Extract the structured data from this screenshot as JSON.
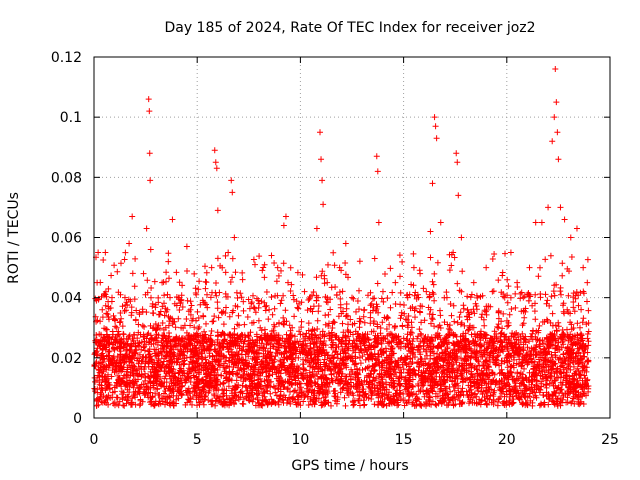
{
  "chart_data": {
    "type": "scatter",
    "title": "Day 185 of 2024, Rate Of TEC Index for receiver joz2",
    "xlabel": "GPS time / hours",
    "ylabel": "ROTI / TECUs",
    "xlim": [
      0,
      25
    ],
    "ylim": [
      0,
      0.12
    ],
    "xticks": [
      0,
      5,
      10,
      15,
      20,
      25
    ],
    "yticks": [
      0,
      0.02,
      0.04,
      0.06,
      0.08,
      0.1,
      0.12
    ],
    "xtick_labels": [
      "0",
      "5",
      "10",
      "15",
      "20",
      "25"
    ],
    "ytick_labels": [
      "0",
      "0.02",
      "0.04",
      "0.06",
      "0.08",
      "0.1",
      "0.12"
    ],
    "grid": true,
    "marker": "+",
    "series_color": "#ff0000",
    "series": [
      {
        "name": "ROTI",
        "x": [
          0.05,
          0.1,
          0.15,
          0.2,
          0.3,
          0.35,
          0.4,
          0.55,
          0.7,
          0.9,
          1.1,
          1.3,
          1.5,
          1.7,
          1.85,
          1.95,
          2.2,
          2.4,
          2.55,
          2.65,
          2.68,
          2.7,
          2.72,
          2.75,
          2.9,
          3.1,
          3.3,
          3.6,
          3.8,
          3.9,
          4.1,
          4.2,
          4.5,
          4.8,
          5.1,
          5.4,
          5.7,
          5.85,
          5.9,
          5.95,
          6.0,
          6.2,
          6.5,
          6.65,
          6.7,
          6.8,
          7.0,
          7.2,
          7.5,
          7.8,
          8.0,
          8.3,
          8.6,
          8.9,
          9.2,
          9.3,
          9.4,
          9.6,
          9.9,
          10.2,
          10.5,
          10.8,
          10.95,
          11.0,
          11.05,
          11.1,
          11.3,
          11.6,
          11.9,
          12.2,
          12.5,
          12.8,
          13.1,
          13.4,
          13.6,
          13.7,
          13.75,
          13.8,
          14.0,
          14.3,
          14.6,
          14.9,
          15.2,
          15.5,
          15.8,
          16.1,
          16.3,
          16.4,
          16.5,
          16.55,
          16.6,
          16.8,
          17.1,
          17.4,
          17.55,
          17.6,
          17.65,
          17.8,
          18.1,
          18.4,
          18.7,
          19.0,
          19.3,
          19.6,
          19.9,
          20.2,
          20.5,
          20.8,
          21.1,
          21.4,
          21.7,
          22.0,
          22.2,
          22.3,
          22.35,
          22.4,
          22.45,
          22.5,
          22.6,
          22.8,
          23.1,
          23.4,
          23.7,
          23.9
        ],
        "y": [
          0.012,
          0.032,
          0.045,
          0.055,
          0.02,
          0.015,
          0.036,
          0.055,
          0.025,
          0.018,
          0.03,
          0.016,
          0.04,
          0.058,
          0.067,
          0.022,
          0.035,
          0.048,
          0.063,
          0.106,
          0.102,
          0.088,
          0.079,
          0.056,
          0.03,
          0.018,
          0.045,
          0.052,
          0.066,
          0.032,
          0.04,
          0.021,
          0.057,
          0.033,
          0.016,
          0.043,
          0.05,
          0.089,
          0.085,
          0.083,
          0.069,
          0.025,
          0.055,
          0.079,
          0.075,
          0.06,
          0.034,
          0.046,
          0.022,
          0.051,
          0.038,
          0.028,
          0.054,
          0.05,
          0.064,
          0.067,
          0.045,
          0.03,
          0.02,
          0.042,
          0.036,
          0.063,
          0.095,
          0.086,
          0.079,
          0.071,
          0.045,
          0.032,
          0.05,
          0.058,
          0.04,
          0.028,
          0.036,
          0.035,
          0.053,
          0.087,
          0.082,
          0.065,
          0.042,
          0.031,
          0.045,
          0.02,
          0.04,
          0.05,
          0.048,
          0.042,
          0.062,
          0.078,
          0.1,
          0.097,
          0.093,
          0.065,
          0.04,
          0.055,
          0.088,
          0.085,
          0.074,
          0.06,
          0.036,
          0.045,
          0.028,
          0.05,
          0.042,
          0.035,
          0.04,
          0.055,
          0.045,
          0.04,
          0.05,
          0.065,
          0.065,
          0.07,
          0.092,
          0.1,
          0.116,
          0.105,
          0.095,
          0.086,
          0.07,
          0.066,
          0.06,
          0.063,
          0.05,
          0.045
        ]
      }
    ]
  }
}
